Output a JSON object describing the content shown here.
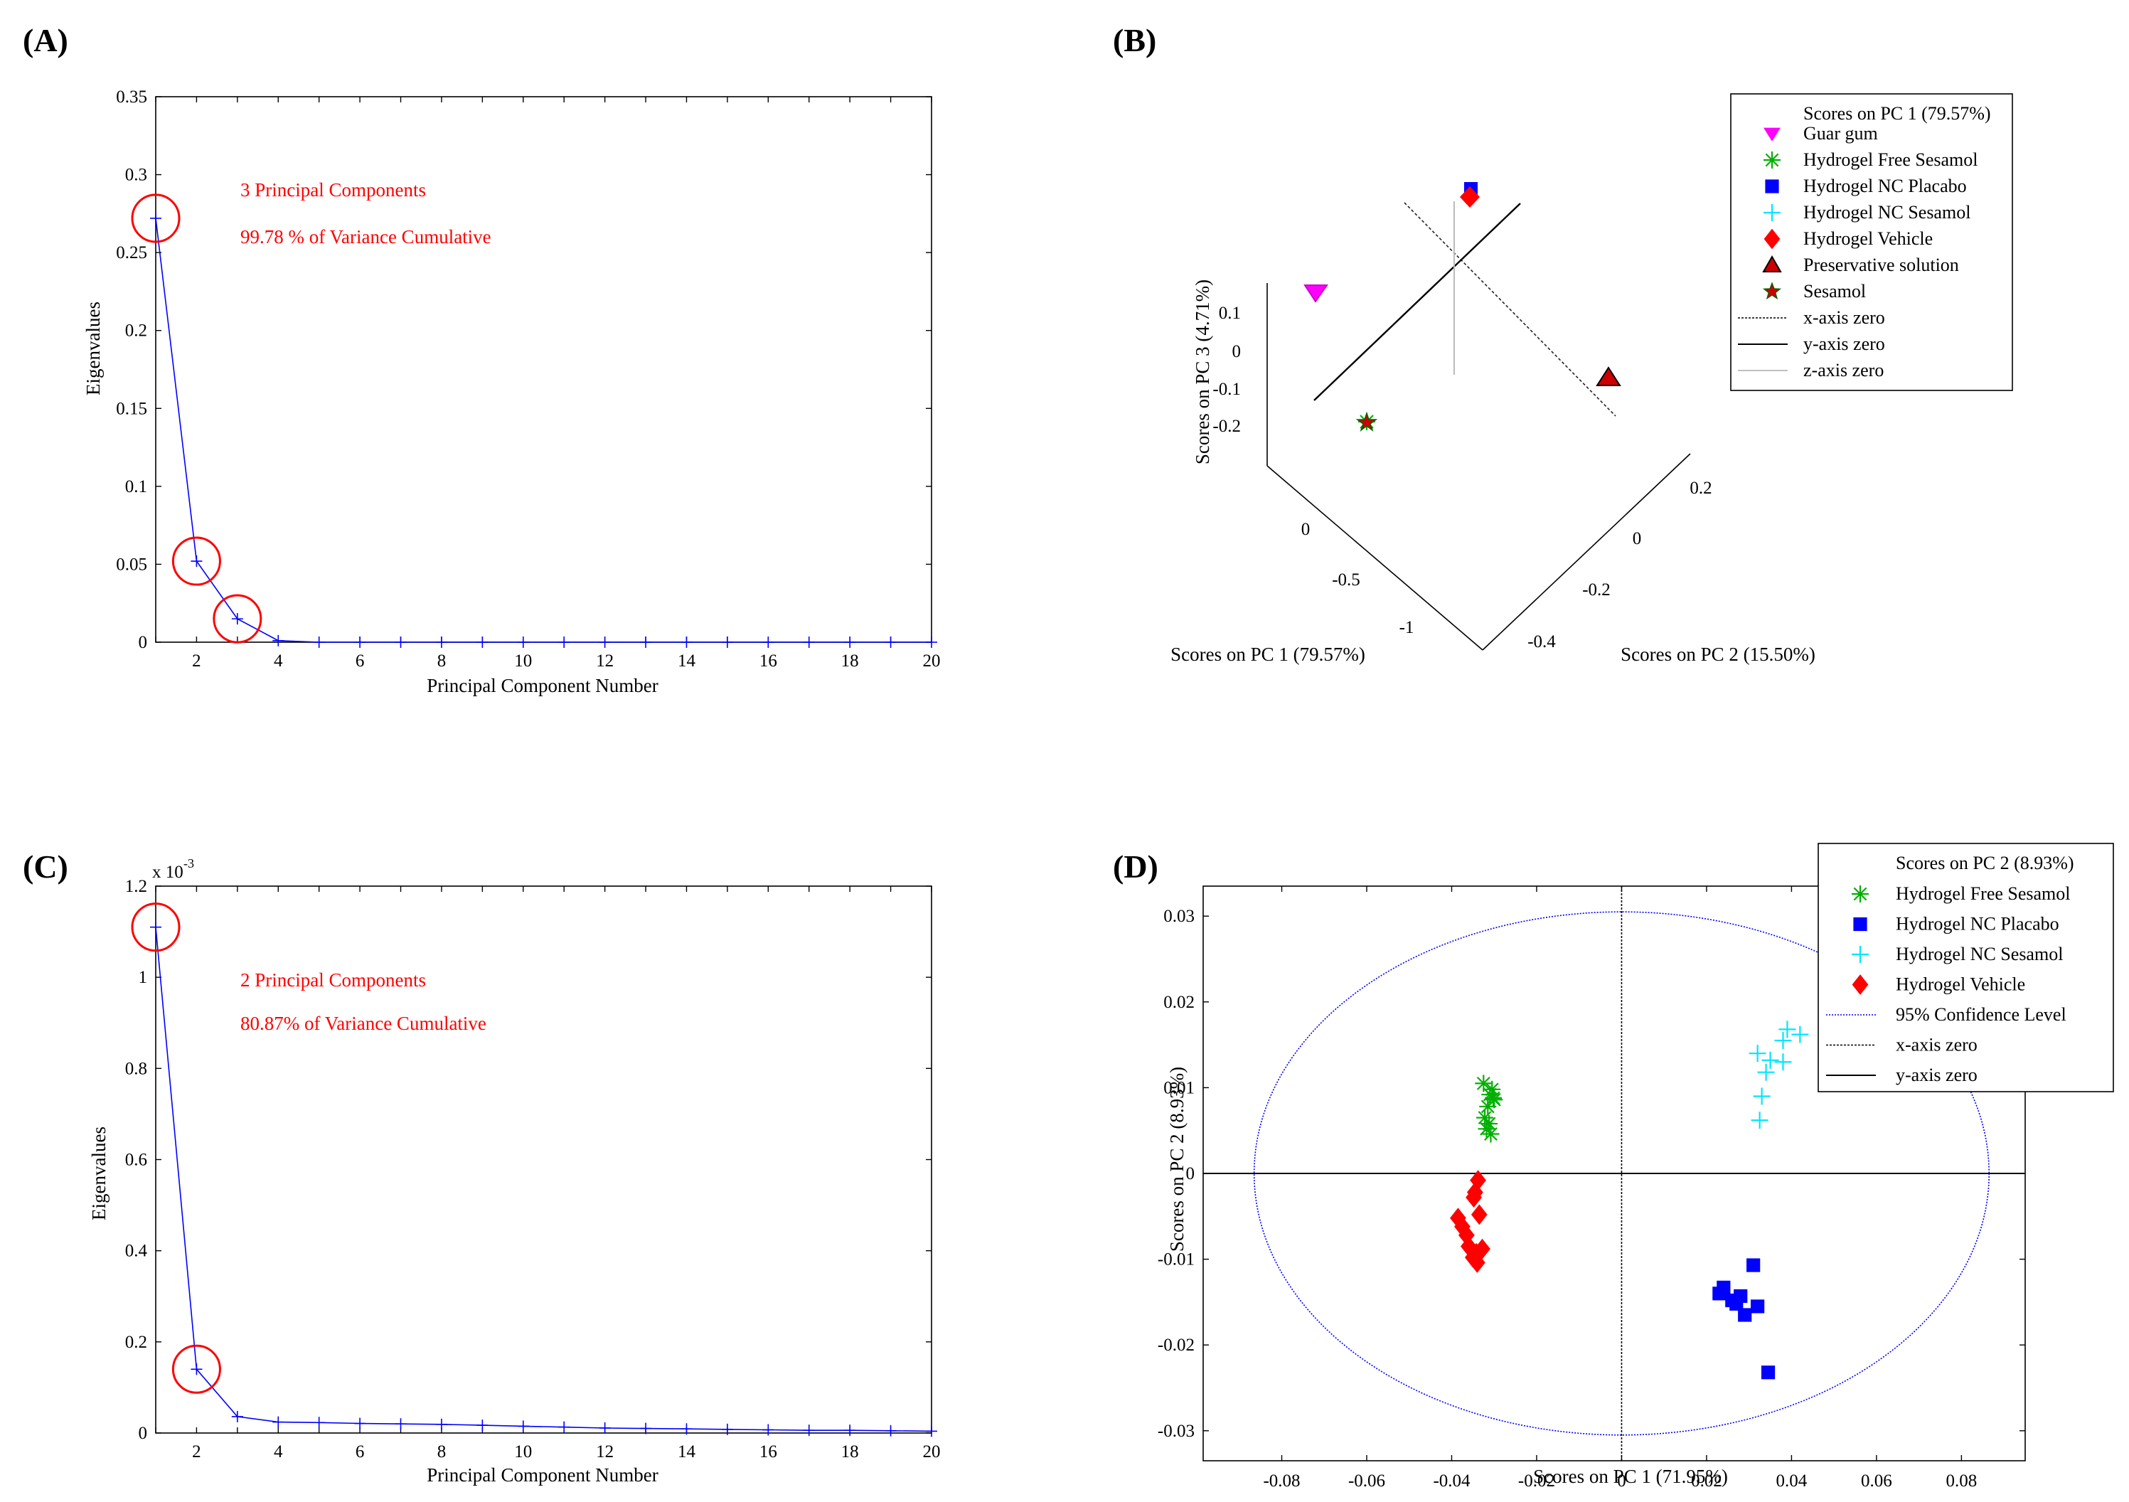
{
  "panels": {
    "a": "(A)",
    "b": "(B)",
    "c": "(C)",
    "d": "(D)"
  },
  "colors": {
    "line": "#0000ff",
    "red": "#ff0000",
    "magenta": "#ff00ff",
    "green": "#00b000",
    "blue": "#0000ff",
    "cyan": "#00e5ff",
    "dark_red": "#cc0000",
    "ellipse": "#0000ff"
  },
  "chart_data": [
    {
      "id": "A",
      "type": "line",
      "xlabel": "Principal Component Number",
      "ylabel": "Eigenvalues",
      "xlim": [
        1,
        20
      ],
      "ylim": [
        0,
        0.35
      ],
      "xticks": [
        2,
        4,
        6,
        8,
        10,
        12,
        14,
        16,
        18,
        20
      ],
      "yticks": [
        0,
        0.05,
        0.1,
        0.15,
        0.2,
        0.25,
        0.3,
        0.35
      ],
      "x": [
        1,
        2,
        3,
        4,
        5,
        6,
        7,
        8,
        9,
        10,
        11,
        12,
        13,
        14,
        15,
        16,
        17,
        18,
        19,
        20
      ],
      "values": [
        0.272,
        0.052,
        0.015,
        0.001,
        0,
        0,
        0,
        0,
        0,
        0,
        0,
        0,
        0,
        0,
        0,
        0,
        0,
        0,
        0,
        0
      ],
      "highlight_x": [
        1,
        2,
        3
      ],
      "annotations": [
        "3 Principal Components",
        "99.78 % of Variance Cumulative"
      ]
    },
    {
      "id": "C",
      "type": "line",
      "xlabel": "Principal Component Number",
      "ylabel": "Eigenvalues",
      "scale_label": "x 10",
      "scale_exponent": "-3",
      "xlim": [
        1,
        20
      ],
      "ylim": [
        0,
        1.2
      ],
      "xticks": [
        2,
        4,
        6,
        8,
        10,
        12,
        14,
        16,
        18,
        20
      ],
      "yticks": [
        0,
        0.2,
        0.4,
        0.6,
        0.8,
        1,
        1.2
      ],
      "x": [
        1,
        2,
        3,
        4,
        5,
        6,
        7,
        8,
        9,
        10,
        11,
        12,
        13,
        14,
        15,
        16,
        17,
        18,
        19,
        20
      ],
      "values": [
        1.11,
        0.14,
        0.036,
        0.024,
        0.023,
        0.021,
        0.02,
        0.019,
        0.017,
        0.015,
        0.013,
        0.011,
        0.01,
        0.009,
        0.008,
        0.007,
        0.006,
        0.006,
        0.005,
        0.004
      ],
      "highlight_x": [
        1,
        2
      ],
      "annotations": [
        "2 Principal Components",
        "80.87% of Variance Cumulative"
      ]
    },
    {
      "id": "B",
      "type": "scatter3d",
      "xlabel": "Scores on PC 1 (79.57%)",
      "ylabel": "Scores on PC 2 (15.50%)",
      "zlabel": "Scores on PC 3 (4.71%)",
      "pc1_ticks": [
        "0",
        "-0.5",
        "-1"
      ],
      "pc2_ticks": [
        "0.2",
        "0",
        "-0.2",
        "-0.4"
      ],
      "pc3_ticks": [
        "0.1",
        "0",
        "-0.1",
        "-0.2"
      ],
      "legend_title": "Scores on PC 1 (79.57%)",
      "legend": [
        {
          "label": "Guar gum",
          "marker": "tri-down",
          "color": "#ff00ff"
        },
        {
          "label": "Hydrogel Free Sesamol",
          "marker": "asterisk",
          "color": "#00b000"
        },
        {
          "label": "Hydrogel NC Placabo",
          "marker": "square",
          "color": "#0000ff"
        },
        {
          "label": "Hydrogel NC Sesamol",
          "marker": "plus",
          "color": "#00e5ff"
        },
        {
          "label": "Hydrogel Vehicle",
          "marker": "diamond",
          "color": "#ff0000"
        },
        {
          "label": "Preservative solution",
          "marker": "tri-up",
          "color": "#cc0000"
        },
        {
          "label": "Sesamol",
          "marker": "star",
          "color": "#cc0000"
        },
        {
          "label": "x-axis zero",
          "marker": "dotted-line",
          "color": "#000000"
        },
        {
          "label": "y-axis zero",
          "marker": "solid-line",
          "color": "#000000"
        },
        {
          "label": "z-axis zero",
          "marker": "light-line",
          "color": "#aaaaaa"
        }
      ]
    },
    {
      "id": "D",
      "type": "scatter",
      "xlabel": "Scores on PC 1 (71.95%)",
      "ylabel": "Scores on PC 2 (8.93%)",
      "xlim": [
        -0.0985,
        0.095
      ],
      "ylim": [
        -0.0335,
        0.0335
      ],
      "xticks": [
        -0.08,
        -0.06,
        -0.04,
        -0.02,
        0,
        0.02,
        0.04,
        0.06,
        0.08
      ],
      "yticks": [
        -0.03,
        -0.02,
        -0.01,
        0,
        0.01,
        0.02,
        0.03
      ],
      "ellipse": {
        "center": [
          0,
          0
        ],
        "rx": 0.0865,
        "ry": 0.0305
      },
      "series": [
        {
          "name": "Hydrogel Free Sesamol",
          "marker": "asterisk",
          "color": "#00b000",
          "points": [
            [
              -0.0325,
              0.0105
            ],
            [
              -0.0305,
              0.0098
            ],
            [
              -0.031,
              0.0092
            ],
            [
              -0.03,
              0.0086
            ],
            [
              -0.0315,
              0.0078
            ],
            [
              -0.0322,
              0.0065
            ],
            [
              -0.0312,
              0.0058
            ],
            [
              -0.0318,
              0.0052
            ],
            [
              -0.0308,
              0.0046
            ],
            [
              -0.0302,
              0.0088
            ]
          ]
        },
        {
          "name": "Hydrogel NC Placabo",
          "marker": "square",
          "color": "#0000ff",
          "points": [
            [
              0.031,
              -0.0107
            ],
            [
              0.024,
              -0.0133
            ],
            [
              0.023,
              -0.014
            ],
            [
              0.026,
              -0.0148
            ],
            [
              0.028,
              -0.0143
            ],
            [
              0.027,
              -0.0152
            ],
            [
              0.032,
              -0.0155
            ],
            [
              0.029,
              -0.0165
            ],
            [
              0.0345,
              -0.0232
            ]
          ]
        },
        {
          "name": "Hydrogel NC Sesamol",
          "marker": "plus",
          "color": "#00e5ff",
          "points": [
            [
              0.039,
              0.0168
            ],
            [
              0.042,
              0.0162
            ],
            [
              0.038,
              0.0155
            ],
            [
              0.032,
              0.014
            ],
            [
              0.035,
              0.0132
            ],
            [
              0.038,
              0.013
            ],
            [
              0.034,
              0.0118
            ],
            [
              0.033,
              0.009
            ],
            [
              0.0325,
              0.0062
            ]
          ]
        },
        {
          "name": "Hydrogel Vehicle",
          "marker": "diamond",
          "color": "#ff0000",
          "points": [
            [
              -0.0338,
              -0.0008
            ],
            [
              -0.0345,
              -0.0022
            ],
            [
              -0.0348,
              -0.0028
            ],
            [
              -0.0335,
              -0.0048
            ],
            [
              -0.0385,
              -0.0052
            ],
            [
              -0.0375,
              -0.0062
            ],
            [
              -0.0365,
              -0.0072
            ],
            [
              -0.036,
              -0.0085
            ],
            [
              -0.0328,
              -0.0088
            ],
            [
              -0.0342,
              -0.0093
            ],
            [
              -0.035,
              -0.0098
            ],
            [
              -0.034,
              -0.0104
            ]
          ]
        }
      ],
      "legend_title": "Scores on PC 2 (8.93%)",
      "legend": [
        {
          "label": "Hydrogel Free Sesamol",
          "marker": "asterisk",
          "color": "#00b000"
        },
        {
          "label": "Hydrogel NC Placabo",
          "marker": "square",
          "color": "#0000ff"
        },
        {
          "label": "Hydrogel NC Sesamol",
          "marker": "plus",
          "color": "#00e5ff"
        },
        {
          "label": "Hydrogel Vehicle",
          "marker": "diamond",
          "color": "#ff0000"
        },
        {
          "label": "95% Confidence Level",
          "marker": "dotted-blue-line",
          "color": "#0000ff"
        },
        {
          "label": "x-axis zero",
          "marker": "dotted-line",
          "color": "#000000"
        },
        {
          "label": "y-axis zero",
          "marker": "solid-line",
          "color": "#000000"
        }
      ]
    }
  ]
}
